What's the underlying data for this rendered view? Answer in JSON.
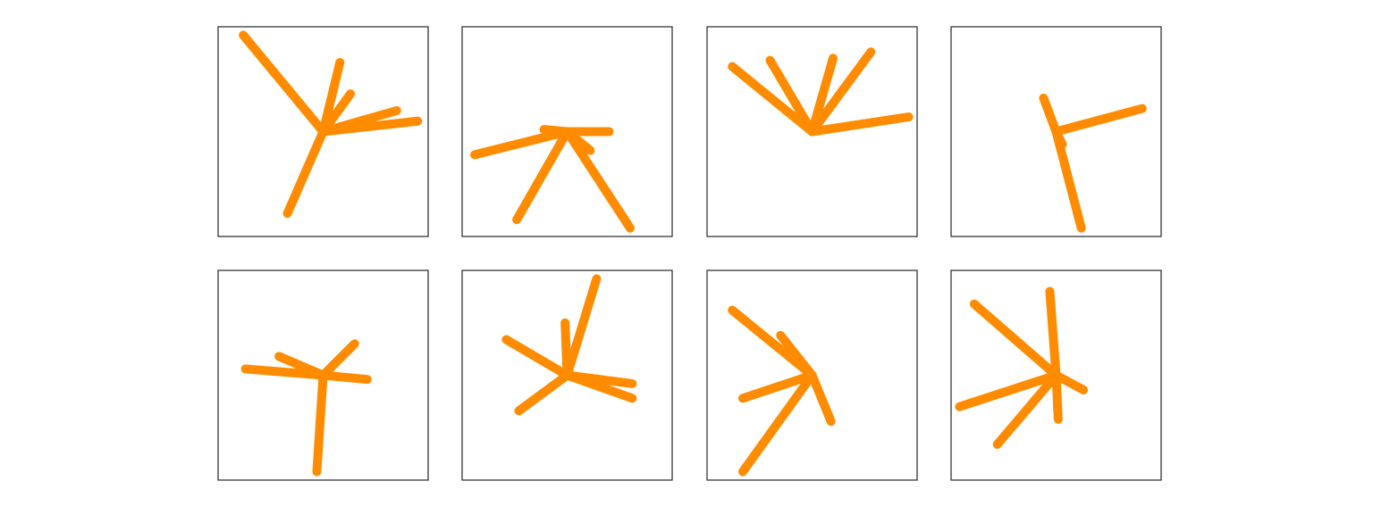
{
  "style": {
    "spoke_color": "#ff8c00",
    "frame_color": "#262626",
    "background": "#ffffff"
  },
  "panels": [
    {
      "hub": [
        0.5,
        0.5
      ],
      "tips": [
        [
          0.12,
          0.04
        ],
        [
          0.58,
          0.17
        ],
        [
          0.63,
          0.32
        ],
        [
          0.85,
          0.4
        ],
        [
          0.95,
          0.45
        ],
        [
          0.33,
          0.89
        ]
      ]
    },
    {
      "hub": [
        0.5,
        0.5
      ],
      "tips": [
        [
          0.06,
          0.61
        ],
        [
          0.39,
          0.49
        ],
        [
          0.7,
          0.5
        ],
        [
          0.61,
          0.59
        ],
        [
          0.26,
          0.92
        ],
        [
          0.8,
          0.96
        ]
      ]
    },
    {
      "hub": [
        0.5,
        0.5
      ],
      "tips": [
        [
          0.12,
          0.19
        ],
        [
          0.3,
          0.16
        ],
        [
          0.6,
          0.15
        ],
        [
          0.78,
          0.12
        ],
        [
          0.96,
          0.43
        ]
      ]
    },
    {
      "hub": [
        0.5,
        0.5
      ],
      "tips": [
        [
          0.44,
          0.34
        ],
        [
          0.53,
          0.56
        ],
        [
          0.91,
          0.39
        ],
        [
          0.62,
          0.96
        ]
      ]
    },
    {
      "hub": [
        0.5,
        0.5
      ],
      "tips": [
        [
          0.13,
          0.47
        ],
        [
          0.29,
          0.41
        ],
        [
          0.65,
          0.35
        ],
        [
          0.71,
          0.52
        ],
        [
          0.47,
          0.96
        ]
      ]
    },
    {
      "hub": [
        0.5,
        0.5
      ],
      "tips": [
        [
          0.21,
          0.33
        ],
        [
          0.49,
          0.25
        ],
        [
          0.64,
          0.04
        ],
        [
          0.81,
          0.54
        ],
        [
          0.81,
          0.61
        ],
        [
          0.27,
          0.67
        ]
      ]
    },
    {
      "hub": [
        0.5,
        0.5
      ],
      "tips": [
        [
          0.12,
          0.19
        ],
        [
          0.35,
          0.31
        ],
        [
          0.17,
          0.61
        ],
        [
          0.59,
          0.72
        ],
        [
          0.17,
          0.96
        ]
      ]
    },
    {
      "hub": [
        0.5,
        0.5
      ],
      "tips": [
        [
          0.11,
          0.16
        ],
        [
          0.47,
          0.1
        ],
        [
          0.63,
          0.57
        ],
        [
          0.51,
          0.71
        ],
        [
          0.04,
          0.65
        ],
        [
          0.22,
          0.83
        ]
      ]
    }
  ]
}
